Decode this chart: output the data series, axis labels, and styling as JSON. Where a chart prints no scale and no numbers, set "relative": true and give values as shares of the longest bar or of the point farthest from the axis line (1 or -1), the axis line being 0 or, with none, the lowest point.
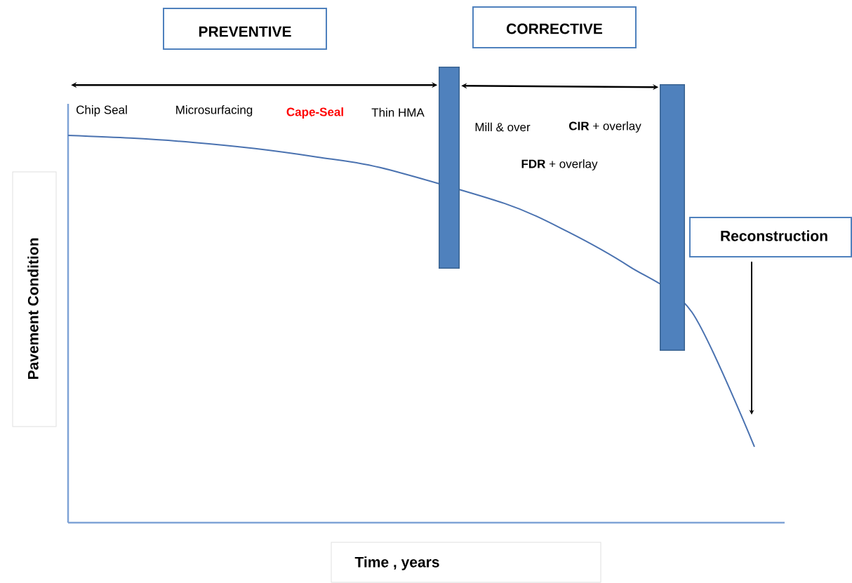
{
  "chart_data": {
    "type": "line",
    "relative": true,
    "categories": [
      null,
      null,
      null,
      null,
      null,
      null,
      null,
      null,
      null,
      null,
      null,
      null
    ],
    "series": [
      {
        "color": "#4a72b0",
        "values": [
          1.0,
          0.993,
          0.982,
          0.966,
          0.944,
          0.917,
          null,
          0.824,
          0.752,
          0.661,
          0.543,
          0.196
        ]
      }
    ],
    "xlabel": "**Time , years**",
    "ylabel": "**Pavement Condition**",
    "annotations": [
      "**PREVENTIVE**",
      "**CORRECTIVE**",
      "Chip Seal",
      "Microsurfacing",
      "**Cape-Seal**",
      "Thin HMA",
      "Mill & over",
      "**CIR** + overlay",
      "**FDR** + overlay",
      "**Reconstruction**"
    ]
  }
}
